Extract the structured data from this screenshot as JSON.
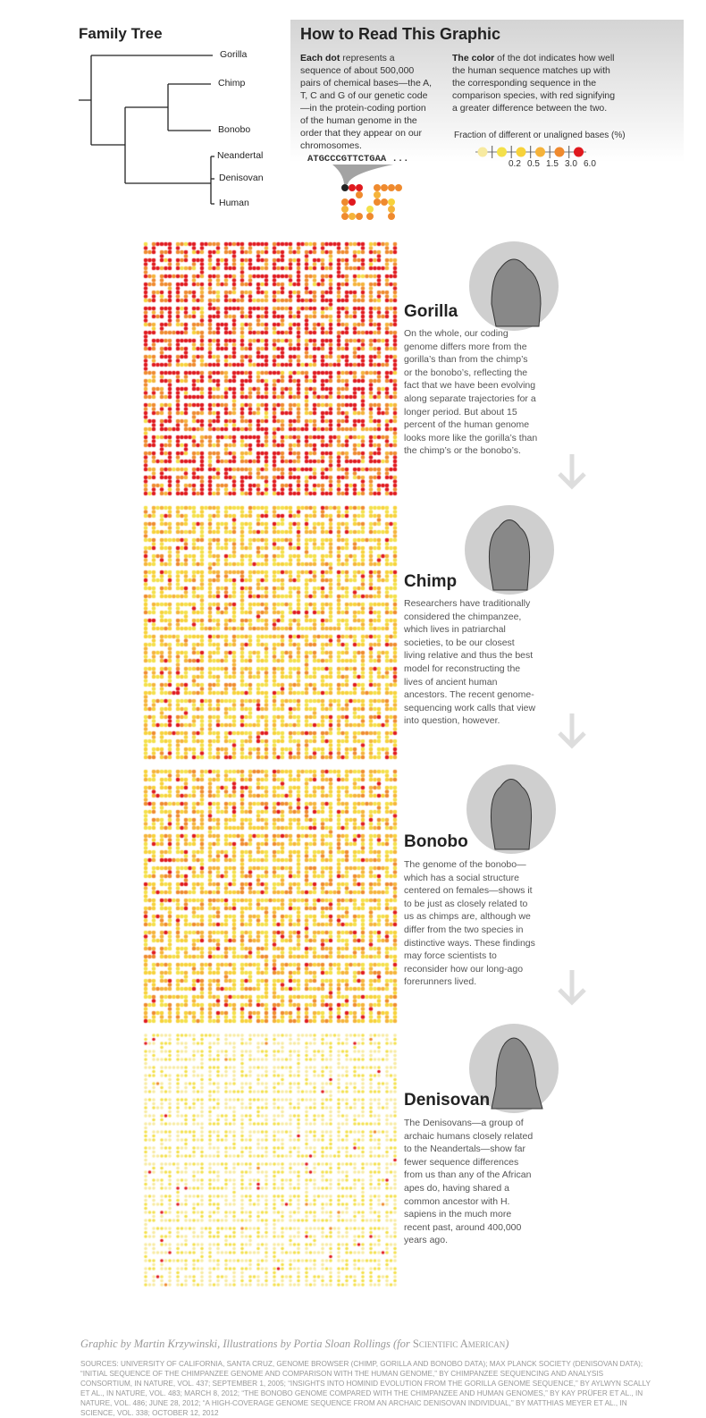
{
  "family_tree": {
    "title": "Family Tree",
    "leaves": [
      "Gorilla",
      "Chimp",
      "Bonobo",
      "Neandertal",
      "Denisovan",
      "Human"
    ]
  },
  "how_to": {
    "title": "How to Read This Graphic",
    "left_bold": "Each dot",
    "left_text": " represents a sequence of about 500,000 pairs of chemical bases—the A, T, C and G of our genetic code—in the protein-coding portion of the human genome in the order that they appear on our chromosomes.",
    "right_bold": "The color",
    "right_text": " of the dot indicates how well the human sequence matches up with the corresponding sequence in the comparison species, with red signifying a greater difference between the two.",
    "sequence": "ATGCCCGTTCTGAA ...",
    "scale_label": "Fraction of different or unaligned bases (%)",
    "scale_ticks": [
      "0.2",
      "0.5",
      "1.5",
      "3.0",
      "6.0"
    ],
    "scale_colors": [
      "#f7eaa0",
      "#f4e04a",
      "#f7d23a",
      "#f5b33a",
      "#ef8a2e",
      "#e0191e"
    ]
  },
  "panels": [
    {
      "name": "Gorilla",
      "text": "On the whole, our coding genome differs more from the gorilla’s than from the chimp’s or the bonobo’s, reflecting the fact that we have been evolving along separate trajectories for a longer period. But about 15 percent of the human genome looks more like the gorilla’s than the chimp’s or the bonobo’s.",
      "color_mix": [
        0,
        0.02,
        0.05,
        0.13,
        0.3,
        0.5
      ]
    },
    {
      "name": "Chimp",
      "text": "Researchers have traditionally considered the chimpanzee, which lives in patriarchal societies, to be our closest living relative and thus the best model for reconstructing the lives of ancient human ancestors. The recent genome-sequencing work calls that view into question, however.",
      "color_mix": [
        0,
        0.3,
        0.3,
        0.2,
        0.13,
        0.07
      ]
    },
    {
      "name": "Bonobo",
      "text": "The genome of the bonobo—which has a social structure centered on females—shows it to be just as closely related to us as chimps are, although we differ from the two species in distinctive ways. These findings may force scientists to reconsider how our long-ago forerunners lived.",
      "color_mix": [
        0,
        0.25,
        0.3,
        0.22,
        0.15,
        0.08
      ]
    },
    {
      "name": "Denisovan",
      "text": "The Denisovans—a group of archaic humans closely related to the Neandertals—show far fewer sequence differences from us than any of the African apes do, having shared a common ancestor with H. sapiens in the much more recent past, around 400,000 years ago.",
      "color_mix": [
        0.55,
        0.43,
        0,
        0,
        0.007,
        0.013
      ]
    }
  ],
  "credit": {
    "text": "Graphic by Martin Krzywinski, Illustrations by Portia Sloan Rollings (for ",
    "publisher": "Scientific American",
    ")": ")"
  },
  "sources": "Sources: University of California, Santa Cruz, Genome Browser (chimp, gorilla and bonobo data); Max Planck Society (Denisovan data); “Initial Sequence of the Chimpanzee Genome and Comparison with the Human Genome,” by Chimpanzee Sequencing and Analysis Consortium, in Nature, Vol. 437; September 1, 2005; “Insights into Hominid Evolution from the Gorilla Genome Sequence,” by Aylwyn Scally et al., in Nature, Vol. 483; March 8, 2012; “The Bonobo Genome Compared with the Chimpanzee and Human Genomes,” by Kay Prüfer et al., in Nature, Vol. 486; June 28, 2012; “A High-Coverage Genome Sequence from an Archaic Denisovan Individual,” by Matthias Meyer et al., in Science, Vol. 338; October 12, 2012"
}
